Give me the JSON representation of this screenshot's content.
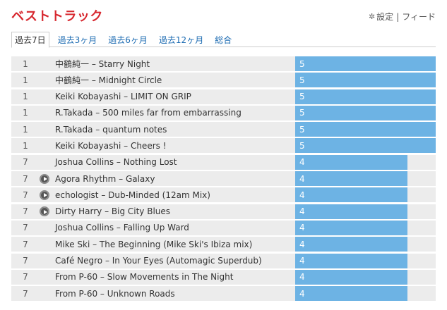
{
  "header": {
    "title": "ベストトラック",
    "settings_label": "設定",
    "feed_label": "フィード",
    "separator": "|"
  },
  "tabs": [
    {
      "label": "過去7日",
      "active": true
    },
    {
      "label": "過去3ヶ月",
      "active": false
    },
    {
      "label": "過去6ヶ月",
      "active": false
    },
    {
      "label": "過去12ヶ月",
      "active": false
    },
    {
      "label": "総合",
      "active": false
    }
  ],
  "colors": {
    "accent": "#d7282f",
    "bar": "#6db3e4",
    "row_bg": "#ececec",
    "link": "#1f6db3"
  },
  "max_count": 5,
  "tracks": [
    {
      "rank": "1",
      "title": "中鶴純一 – Starry Night",
      "count": 5,
      "play": false
    },
    {
      "rank": "1",
      "title": "中鶴純一 – Midnight Circle",
      "count": 5,
      "play": false
    },
    {
      "rank": "1",
      "title": "Keiki Kobayashi – LIMIT ON GRIP",
      "count": 5,
      "play": false
    },
    {
      "rank": "1",
      "title": "R.Takada – 500 miles far from embarrassing",
      "count": 5,
      "play": false
    },
    {
      "rank": "1",
      "title": "R.Takada – quantum notes",
      "count": 5,
      "play": false
    },
    {
      "rank": "1",
      "title": "Keiki Kobayashi – Cheers !",
      "count": 5,
      "play": false
    },
    {
      "rank": "7",
      "title": "Joshua Collins – Nothing Lost",
      "count": 4,
      "play": false
    },
    {
      "rank": "7",
      "title": "Agora Rhythm – Galaxy",
      "count": 4,
      "play": true
    },
    {
      "rank": "7",
      "title": "echologist – Dub-Minded (12am Mix)",
      "count": 4,
      "play": true
    },
    {
      "rank": "7",
      "title": "Dirty Harry – Big City Blues",
      "count": 4,
      "play": true
    },
    {
      "rank": "7",
      "title": "Joshua Collins – Falling Up Ward",
      "count": 4,
      "play": false
    },
    {
      "rank": "7",
      "title": "Mike Ski – The Beginning (Mike Ski's Ibiza mix)",
      "count": 4,
      "play": false
    },
    {
      "rank": "7",
      "title": "Café Negro – In Your Eyes (Automagic Superdub)",
      "count": 4,
      "play": false
    },
    {
      "rank": "7",
      "title": "From P-60 – Slow Movements in The Night",
      "count": 4,
      "play": false
    },
    {
      "rank": "7",
      "title": "From P-60 – Unknown Roads",
      "count": 4,
      "play": false
    }
  ]
}
